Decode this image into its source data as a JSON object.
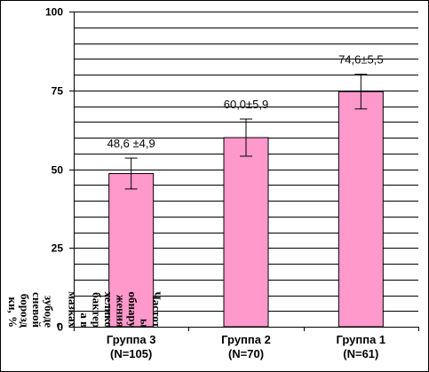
{
  "chart_data": {
    "type": "bar",
    "categories": [
      {
        "line1": "Группа 3",
        "line2": "(N=105)"
      },
      {
        "line1": "Группа 2",
        "line2": "(N=70)"
      },
      {
        "line1": "Группа 1",
        "line2": "(N=61)"
      }
    ],
    "values": [
      48.6,
      60.0,
      74.6
    ],
    "errors": [
      4.9,
      5.9,
      5.5
    ],
    "data_labels": [
      "48,6 ±4,9",
      "60,0±5,9",
      "74,6±5,5"
    ],
    "ylabel_lines": [
      "Частот",
      "ы",
      "обнару",
      "жения",
      "хелико",
      "бактер",
      "а в",
      "мазках",
      "с",
      "зубоде",
      "сневой",
      "борозд",
      "ки, %"
    ],
    "ylim": [
      0,
      100
    ],
    "yticks": [
      0,
      25,
      50,
      75,
      100
    ],
    "grid": true,
    "bar_color": "#ff99cc",
    "bar_edge": "#000000",
    "grid_color": "#000000",
    "plot_background": "#ffffff"
  }
}
